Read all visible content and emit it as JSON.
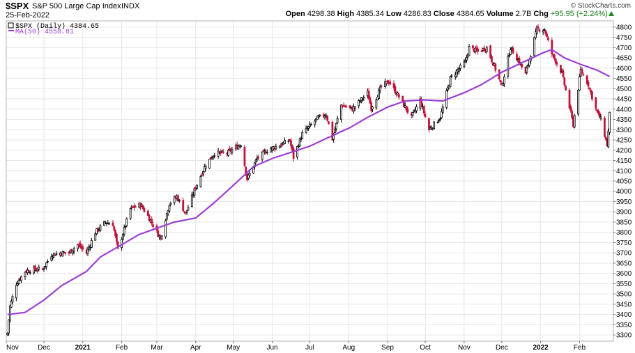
{
  "header": {
    "symbol": "$SPX",
    "description": "S&P 500 Large Cap Index",
    "exchange": "INDX",
    "date": "25-Feb-2022",
    "open_label": "Open",
    "open": "4298.38",
    "high_label": "High",
    "high": "4385.34",
    "low_label": "Low",
    "low": "4286.83",
    "close_label": "Close",
    "close": "4384.65",
    "volume_label": "Volume",
    "volume": "2.7B",
    "chg_label": "Chg",
    "chg": "+95.95 (+2.24%)",
    "brand": "© StockCharts.com"
  },
  "legend": {
    "price_entry": "$SPX (Daily) 4384.65",
    "ma_entry": "MA(50) 4558.81"
  },
  "colors": {
    "up_candle": "#000000",
    "down_candle": "#c0143c",
    "ma_line": "#9c3fd4",
    "grid": "#e6e6e6",
    "positive_change": "#1a8a1a"
  },
  "chart_data": {
    "type": "candlestick",
    "grid": true,
    "y_axis_side": "right",
    "ylim": [
      3270,
      4830
    ],
    "y_ticks": [
      3300,
      3350,
      3400,
      3450,
      3500,
      3550,
      3600,
      3650,
      3700,
      3750,
      3800,
      3850,
      3900,
      3950,
      4000,
      4050,
      4100,
      4150,
      4200,
      4250,
      4300,
      4350,
      4400,
      4450,
      4500,
      4550,
      4600,
      4650,
      4700,
      4750,
      4800
    ],
    "x_range": [
      "2020-11-01",
      "2022-02-28"
    ],
    "x_ticks": [
      {
        "label": "Nov",
        "date": "2020-11-01",
        "bold": false
      },
      {
        "label": "Dec",
        "date": "2020-12-01",
        "bold": false
      },
      {
        "label": "2021",
        "date": "2021-01-01",
        "bold": true
      },
      {
        "label": "Feb",
        "date": "2021-02-01",
        "bold": false
      },
      {
        "label": "Mar",
        "date": "2021-03-01",
        "bold": false
      },
      {
        "label": "Apr",
        "date": "2021-04-01",
        "bold": false
      },
      {
        "label": "May",
        "date": "2021-05-01",
        "bold": false
      },
      {
        "label": "Jun",
        "date": "2021-06-01",
        "bold": false
      },
      {
        "label": "Jul",
        "date": "2021-07-01",
        "bold": false
      },
      {
        "label": "Aug",
        "date": "2021-08-01",
        "bold": false
      },
      {
        "label": "Sep",
        "date": "2021-09-01",
        "bold": false
      },
      {
        "label": "Oct",
        "date": "2021-10-01",
        "bold": false
      },
      {
        "label": "Nov",
        "date": "2021-11-01",
        "bold": false
      },
      {
        "label": "Dec",
        "date": "2021-12-01",
        "bold": false
      },
      {
        "label": "2022",
        "date": "2022-01-01",
        "bold": true
      },
      {
        "label": "Feb",
        "date": "2022-02-01",
        "bold": false
      }
    ],
    "close_path": [
      [
        "2020-11-02",
        3310
      ],
      [
        "2020-11-04",
        3440
      ],
      [
        "2020-11-09",
        3550
      ],
      [
        "2020-11-16",
        3610
      ],
      [
        "2020-11-23",
        3620
      ],
      [
        "2020-11-30",
        3620
      ],
      [
        "2020-12-07",
        3690
      ],
      [
        "2020-12-14",
        3700
      ],
      [
        "2020-12-21",
        3700
      ],
      [
        "2020-12-28",
        3740
      ],
      [
        "2021-01-04",
        3700
      ],
      [
        "2021-01-11",
        3800
      ],
      [
        "2021-01-19",
        3850
      ],
      [
        "2021-01-25",
        3840
      ],
      [
        "2021-01-29",
        3715
      ],
      [
        "2021-02-08",
        3915
      ],
      [
        "2021-02-16",
        3935
      ],
      [
        "2021-02-22",
        3880
      ],
      [
        "2021-03-04",
        3770
      ],
      [
        "2021-03-11",
        3940
      ],
      [
        "2021-03-17",
        3975
      ],
      [
        "2021-03-24",
        3890
      ],
      [
        "2021-04-01",
        4020
      ],
      [
        "2021-04-09",
        4130
      ],
      [
        "2021-04-16",
        4185
      ],
      [
        "2021-04-26",
        4185
      ],
      [
        "2021-05-07",
        4230
      ],
      [
        "2021-05-12",
        4060
      ],
      [
        "2021-05-20",
        4160
      ],
      [
        "2021-05-28",
        4200
      ],
      [
        "2021-06-07",
        4225
      ],
      [
        "2021-06-15",
        4250
      ],
      [
        "2021-06-18",
        4165
      ],
      [
        "2021-06-25",
        4280
      ],
      [
        "2021-07-07",
        4355
      ],
      [
        "2021-07-14",
        4375
      ],
      [
        "2021-07-19",
        4255
      ],
      [
        "2021-07-26",
        4420
      ],
      [
        "2021-08-04",
        4400
      ],
      [
        "2021-08-16",
        4480
      ],
      [
        "2021-08-19",
        4405
      ],
      [
        "2021-08-27",
        4510
      ],
      [
        "2021-09-02",
        4535
      ],
      [
        "2021-09-10",
        4460
      ],
      [
        "2021-09-20",
        4360
      ],
      [
        "2021-09-27",
        4445
      ],
      [
        "2021-10-04",
        4300
      ],
      [
        "2021-10-13",
        4360
      ],
      [
        "2021-10-21",
        4550
      ],
      [
        "2021-11-02",
        4630
      ],
      [
        "2021-11-05",
        4700
      ],
      [
        "2021-11-12",
        4680
      ],
      [
        "2021-11-19",
        4700
      ],
      [
        "2021-11-26",
        4595
      ],
      [
        "2021-12-01",
        4510
      ],
      [
        "2021-12-08",
        4700
      ],
      [
        "2021-12-14",
        4640
      ],
      [
        "2021-12-20",
        4570
      ],
      [
        "2021-12-29",
        4790
      ],
      [
        "2022-01-04",
        4790
      ],
      [
        "2022-01-10",
        4670
      ],
      [
        "2022-01-18",
        4575
      ],
      [
        "2022-01-24",
        4410
      ],
      [
        "2022-01-27",
        4325
      ],
      [
        "2022-02-02",
        4590
      ],
      [
        "2022-02-08",
        4520
      ],
      [
        "2022-02-14",
        4400
      ],
      [
        "2022-02-18",
        4350
      ],
      [
        "2022-02-23",
        4225
      ],
      [
        "2022-02-24",
        4290
      ],
      [
        "2022-02-25",
        4385
      ]
    ],
    "ma50": [
      [
        "2020-11-02",
        3400
      ],
      [
        "2020-11-16",
        3410
      ],
      [
        "2020-12-01",
        3470
      ],
      [
        "2020-12-15",
        3540
      ],
      [
        "2021-01-04",
        3610
      ],
      [
        "2021-01-15",
        3680
      ],
      [
        "2021-02-01",
        3740
      ],
      [
        "2021-02-15",
        3790
      ],
      [
        "2021-03-01",
        3820
      ],
      [
        "2021-03-15",
        3850
      ],
      [
        "2021-04-01",
        3870
      ],
      [
        "2021-04-15",
        3940
      ],
      [
        "2021-05-03",
        4040
      ],
      [
        "2021-05-17",
        4120
      ],
      [
        "2021-06-01",
        4160
      ],
      [
        "2021-06-21",
        4200
      ],
      [
        "2021-07-01",
        4220
      ],
      [
        "2021-07-15",
        4260
      ],
      [
        "2021-08-02",
        4310
      ],
      [
        "2021-08-16",
        4360
      ],
      [
        "2021-09-01",
        4410
      ],
      [
        "2021-09-15",
        4440
      ],
      [
        "2021-10-01",
        4445
      ],
      [
        "2021-10-15",
        4440
      ],
      [
        "2021-11-01",
        4480
      ],
      [
        "2021-11-15",
        4520
      ],
      [
        "2021-12-01",
        4580
      ],
      [
        "2021-12-15",
        4620
      ],
      [
        "2022-01-03",
        4675
      ],
      [
        "2022-01-10",
        4690
      ],
      [
        "2022-01-20",
        4650
      ],
      [
        "2022-02-01",
        4620
      ],
      [
        "2022-02-15",
        4590
      ],
      [
        "2022-02-25",
        4559
      ]
    ]
  }
}
